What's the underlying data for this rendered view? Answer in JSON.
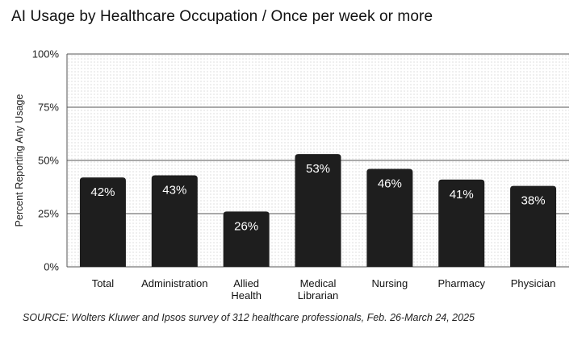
{
  "chart_data": {
    "type": "bar",
    "title": "AI Usage by Healthcare Occupation / Once per week or more",
    "ylabel": "Percent Reporting Any Usage",
    "xlabel": "",
    "ylim": [
      0,
      100
    ],
    "yticks": [
      "0%",
      "25%",
      "50%",
      "75%",
      "100%"
    ],
    "ytick_values": [
      0,
      25,
      50,
      75,
      100
    ],
    "grid": true,
    "categories": [
      [
        "Total"
      ],
      [
        "Administration"
      ],
      [
        "Allied",
        "Health"
      ],
      [
        "Medical",
        "Librarian"
      ],
      [
        "Nursing"
      ],
      [
        "Pharmacy"
      ],
      [
        "Physician"
      ]
    ],
    "values": [
      42,
      43,
      26,
      53,
      46,
      41,
      38
    ],
    "value_labels": [
      "42%",
      "43%",
      "26%",
      "53%",
      "46%",
      "41%",
      "38%"
    ],
    "bar_color": "#1e1e1e",
    "source": "SOURCE: Wolters Kluwer and Ipsos survey of 312 healthcare professionals, Feb. 26-March 24, 2025"
  }
}
